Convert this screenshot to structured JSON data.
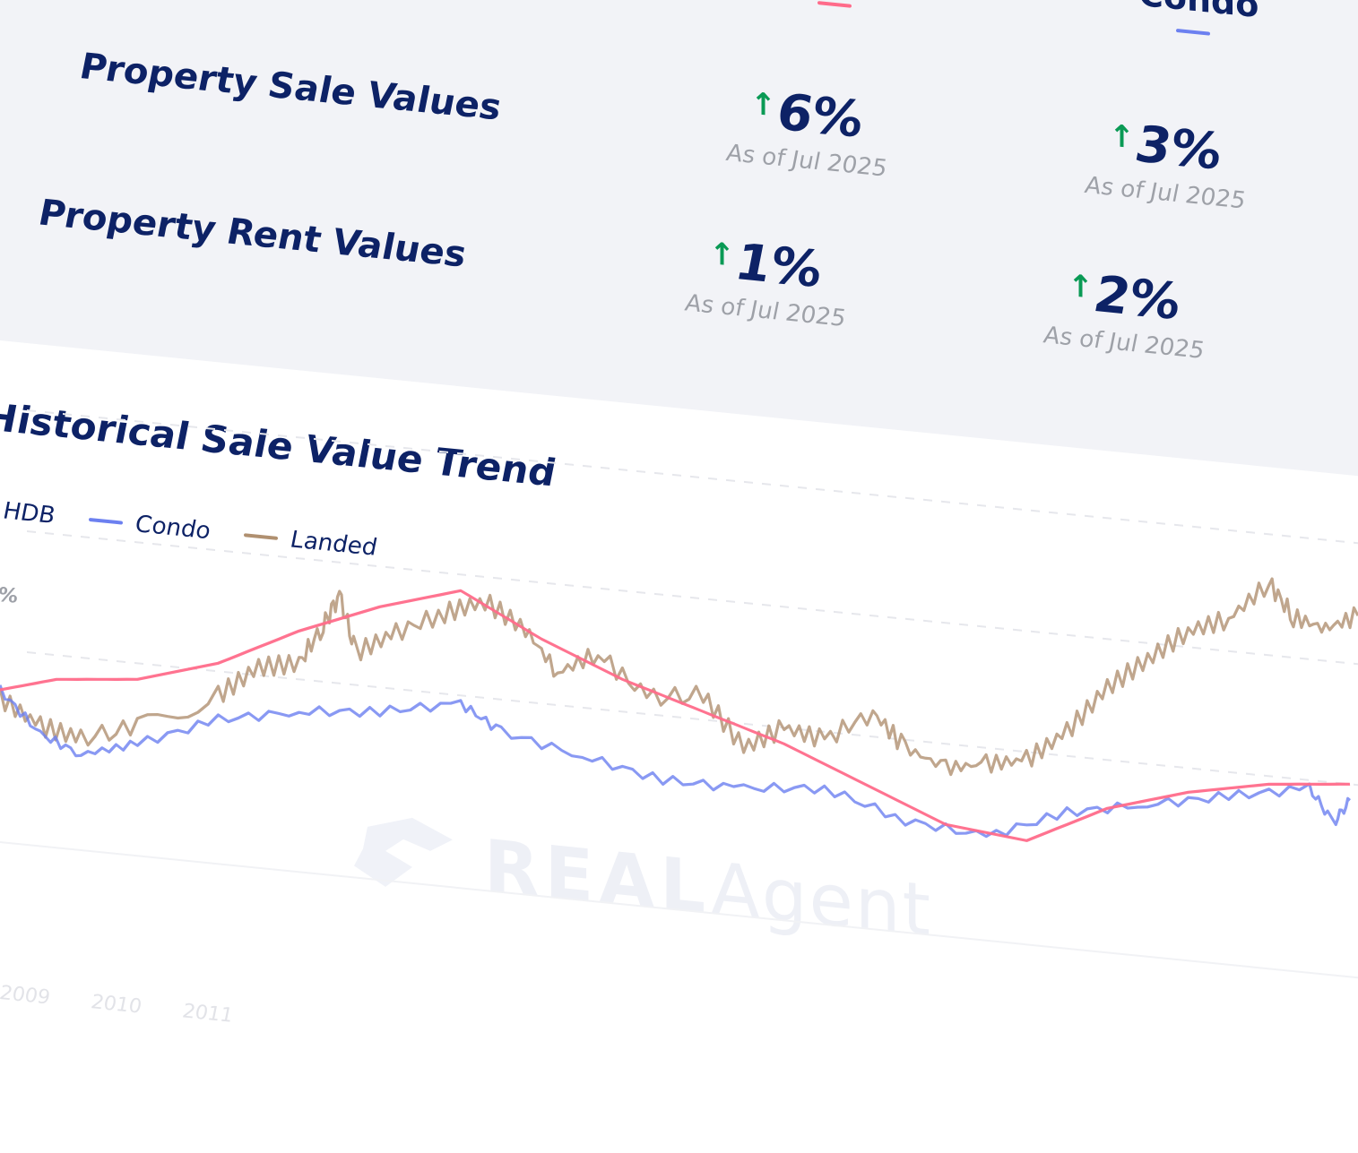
{
  "summary": {
    "column_header": "Condo",
    "rows": [
      {
        "title": "Property Sale Values",
        "metrics": [
          {
            "value": "6%",
            "as_of": "As of Jul 2025"
          },
          {
            "value": "3%",
            "as_of": "As of Jul 2025"
          }
        ]
      },
      {
        "title": "Property Rent Values",
        "metrics": [
          {
            "value": "1%",
            "as_of": "As of Jul 2025"
          },
          {
            "value": "2%",
            "as_of": "As of Jul 2025"
          }
        ]
      }
    ],
    "arrow_glyph": "↑"
  },
  "chart": {
    "title": "Historical Sale Value Trend",
    "y_tick_partial": "%",
    "x_ticks_partial": [
      "2009",
      "2010",
      "2011"
    ],
    "watermark": {
      "bold": "REAL",
      "light": "Agent"
    }
  },
  "colors": {
    "navy": "#0d2266",
    "up_green": "#0a9a55",
    "hdb": "#ff6b8a",
    "condo": "#6c80f0",
    "landed": "#b09070"
  },
  "chart_data": {
    "type": "line",
    "title": "Historical Sale Value Trend",
    "x_range": [
      2008.8,
      2025.6
    ],
    "series": [
      {
        "name": "HDB",
        "color": "#ff6b8a",
        "points": [
          [
            2008.8,
            0.05
          ],
          [
            2009.5,
            0.07
          ],
          [
            2010.5,
            0.08
          ],
          [
            2011.5,
            0.11
          ],
          [
            2012.5,
            0.16
          ],
          [
            2013.5,
            0.2
          ],
          [
            2014.5,
            0.23
          ],
          [
            2015.5,
            0.18
          ],
          [
            2016.5,
            0.14
          ],
          [
            2017.5,
            0.11
          ],
          [
            2018.5,
            0.08
          ],
          [
            2019.5,
            0.04
          ],
          [
            2020.5,
            0.0
          ],
          [
            2021.5,
            -0.01
          ],
          [
            2022.5,
            0.04
          ],
          [
            2023.5,
            0.07
          ],
          [
            2024.5,
            0.09
          ],
          [
            2025.5,
            0.1
          ]
        ]
      },
      {
        "name": "Condo",
        "color": "#6c80f0",
        "points": [
          [
            2008.8,
            0.05
          ],
          [
            2009.3,
            0.0
          ],
          [
            2009.8,
            -0.02
          ],
          [
            2010.5,
            0.0
          ],
          [
            2011.5,
            0.04
          ],
          [
            2012.5,
            0.06
          ],
          [
            2013.5,
            0.07
          ],
          [
            2014.5,
            0.09
          ],
          [
            2015.0,
            0.06
          ],
          [
            2016.0,
            0.04
          ],
          [
            2017.0,
            0.02
          ],
          [
            2018.0,
            0.02
          ],
          [
            2019.0,
            0.03
          ],
          [
            2020.0,
            0.0
          ],
          [
            2021.0,
            -0.01
          ],
          [
            2022.0,
            0.03
          ],
          [
            2023.0,
            0.05
          ],
          [
            2024.0,
            0.07
          ],
          [
            2025.0,
            0.09
          ],
          [
            2025.3,
            0.05
          ],
          [
            2025.5,
            0.08
          ]
        ]
      },
      {
        "name": "Landed",
        "color": "#b09070",
        "points": [
          [
            2008.8,
            0.04
          ],
          [
            2009.3,
            0.01
          ],
          [
            2009.8,
            0.0
          ],
          [
            2010.5,
            0.02
          ],
          [
            2011.5,
            0.07
          ],
          [
            2012.0,
            0.11
          ],
          [
            2012.5,
            0.12
          ],
          [
            2012.8,
            0.17
          ],
          [
            2013.0,
            0.21
          ],
          [
            2013.2,
            0.14
          ],
          [
            2013.7,
            0.17
          ],
          [
            2014.3,
            0.2
          ],
          [
            2014.8,
            0.22
          ],
          [
            2015.3,
            0.19
          ],
          [
            2015.7,
            0.14
          ],
          [
            2016.2,
            0.17
          ],
          [
            2016.8,
            0.12
          ],
          [
            2017.5,
            0.13
          ],
          [
            2018.0,
            0.07
          ],
          [
            2018.5,
            0.1
          ],
          [
            2019.0,
            0.09
          ],
          [
            2019.6,
            0.13
          ],
          [
            2020.0,
            0.09
          ],
          [
            2020.5,
            0.07
          ],
          [
            2021.0,
            0.08
          ],
          [
            2021.5,
            0.09
          ],
          [
            2022.0,
            0.13
          ],
          [
            2022.5,
            0.19
          ],
          [
            2023.0,
            0.23
          ],
          [
            2023.5,
            0.27
          ],
          [
            2024.0,
            0.29
          ],
          [
            2024.5,
            0.34
          ],
          [
            2024.8,
            0.3
          ],
          [
            2025.2,
            0.29
          ],
          [
            2025.6,
            0.31
          ]
        ]
      }
    ]
  }
}
